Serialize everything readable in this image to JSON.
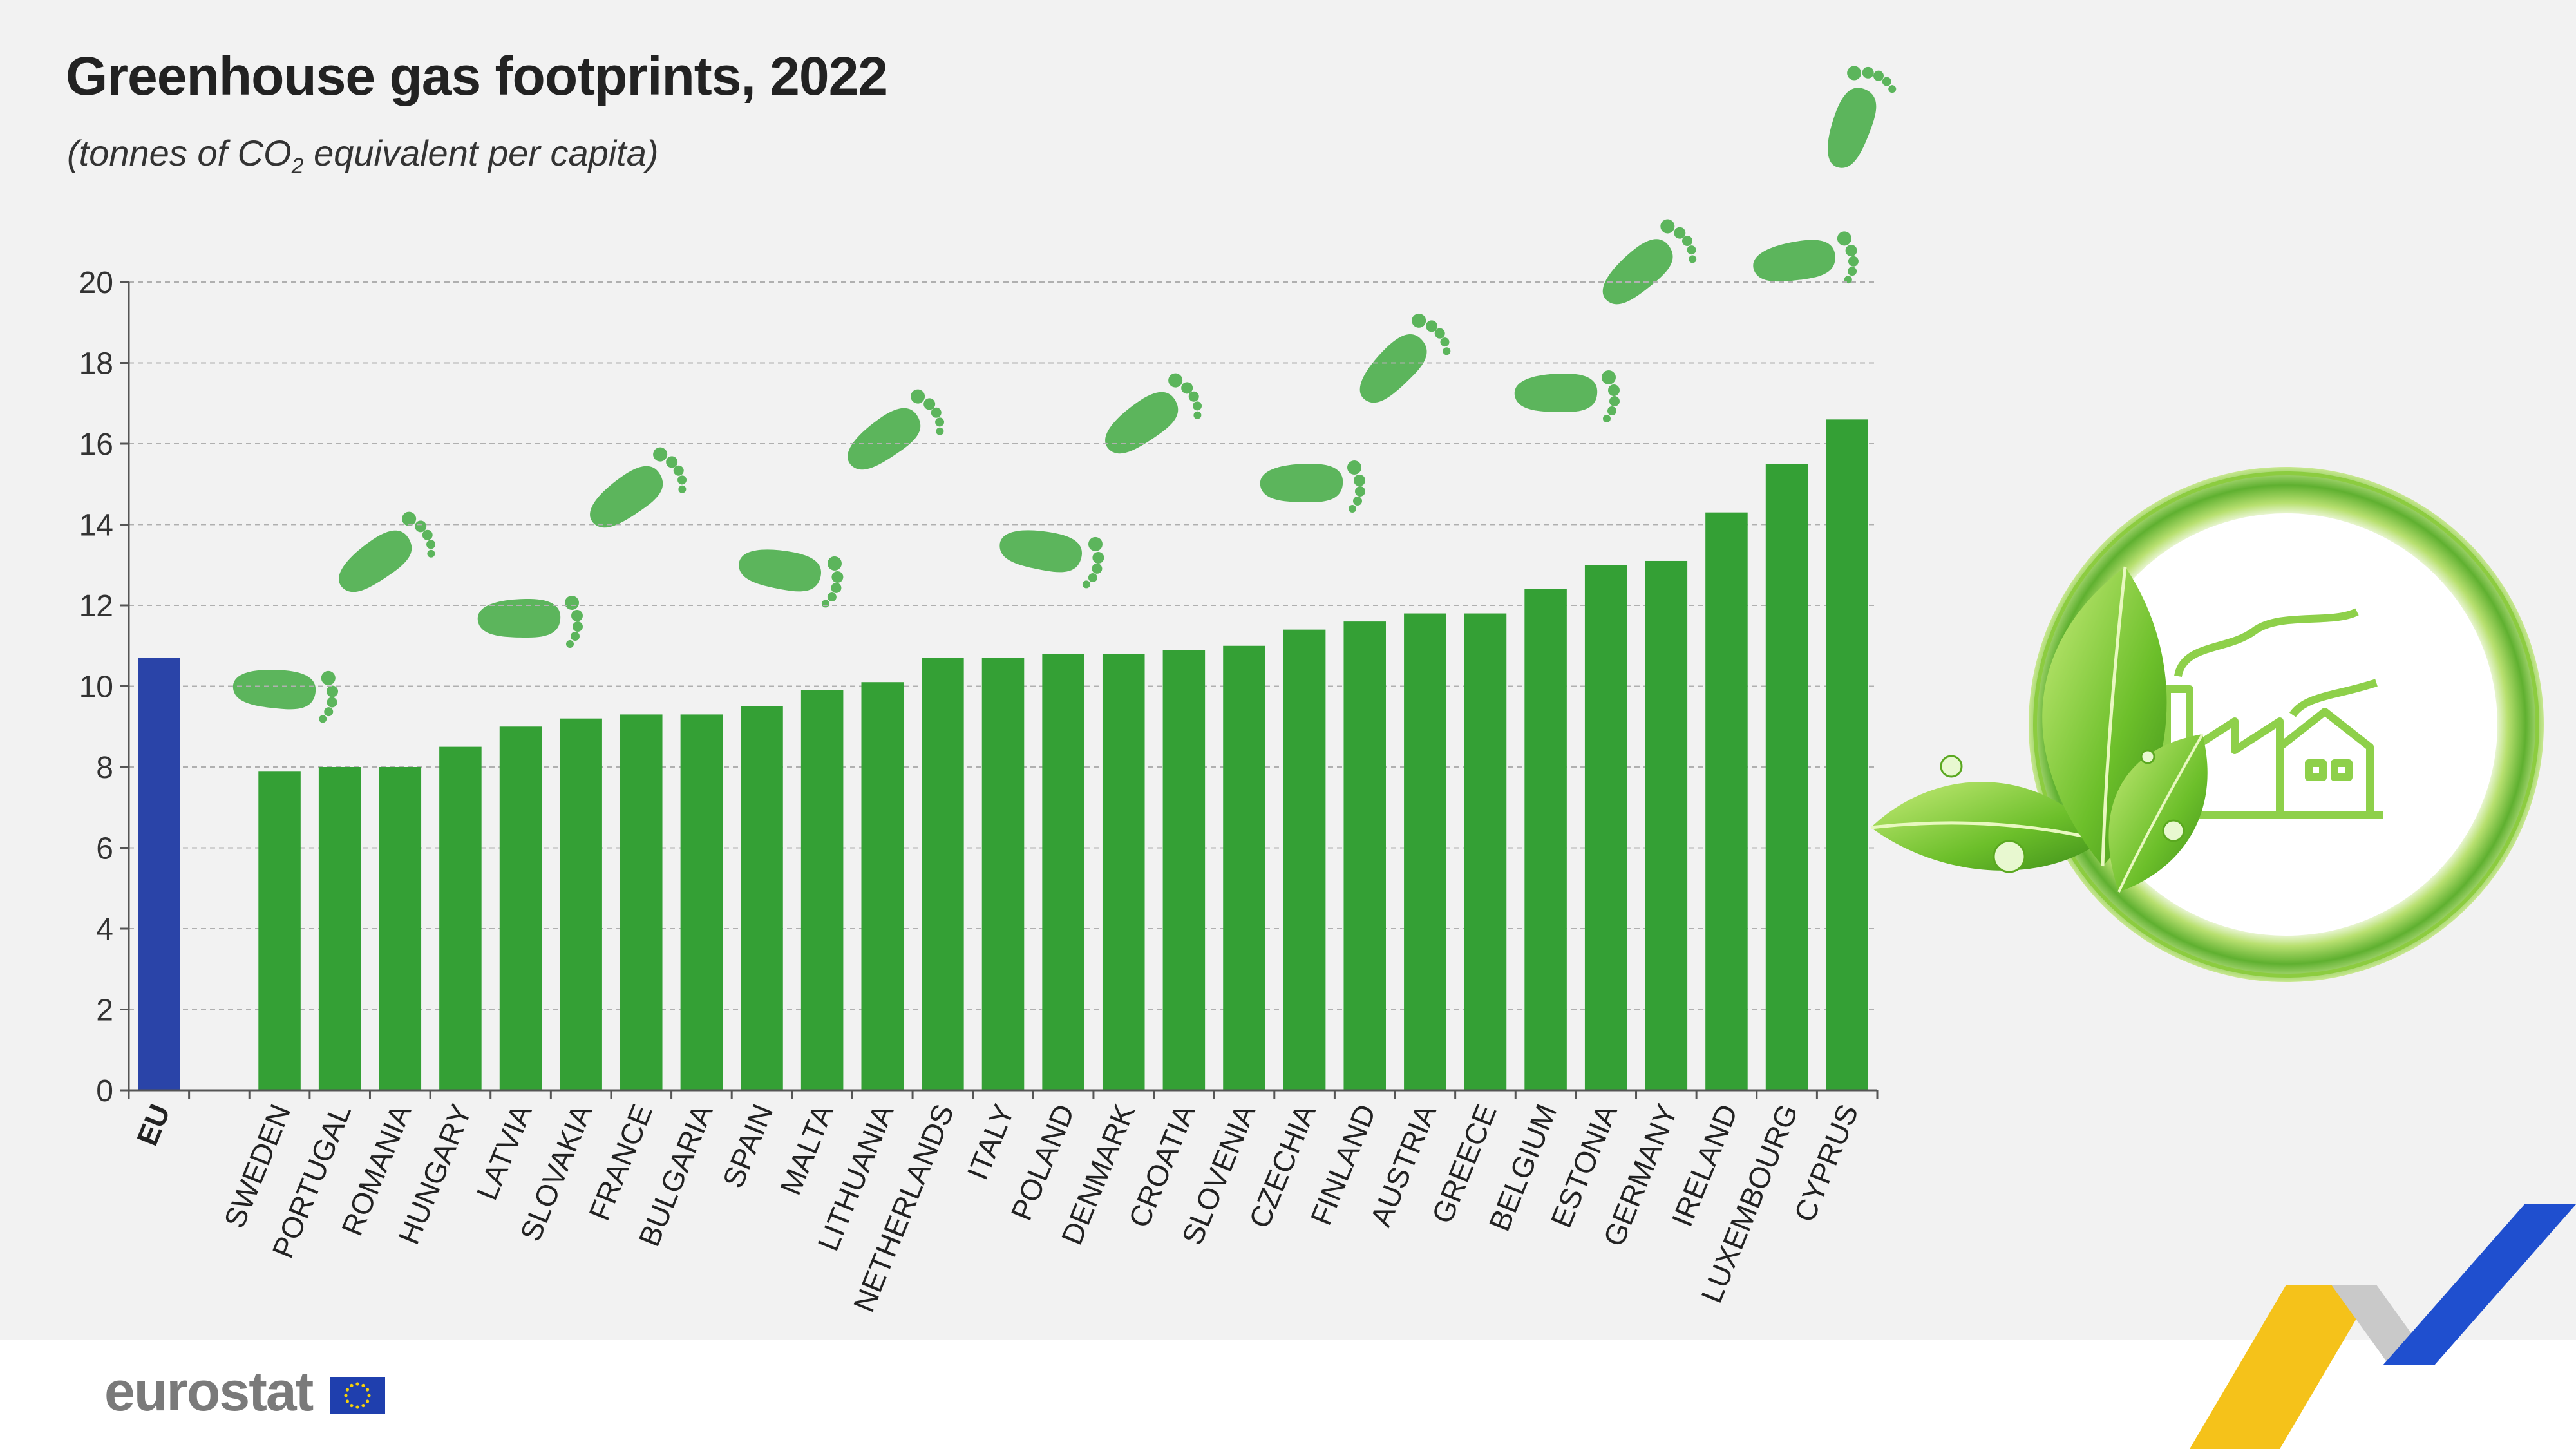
{
  "title": "Greenhouse gas footprints, 2022",
  "subtitle": {
    "before": "(tonnes of CO",
    "sub": "2",
    "after": " equivalent per capita)"
  },
  "colors": {
    "eu_bar": "#2a44a8",
    "country_bar": "#34a035",
    "footprint": "#5cb55c",
    "grid": "#b0b0b0"
  },
  "chart_data": {
    "type": "bar",
    "categories": [
      "EU",
      "SWEDEN",
      "PORTUGAL",
      "ROMANIA",
      "HUNGARY",
      "LATVIA",
      "SLOVAKIA",
      "FRANCE",
      "BULGARIA",
      "SPAIN",
      "MALTA",
      "LITHUANIA",
      "NETHERLANDS",
      "ITALY",
      "POLAND",
      "DENMARK",
      "CROATIA",
      "SLOVENIA",
      "CZECHIA",
      "FINLAND",
      "AUSTRIA",
      "GREECE",
      "BELGIUM",
      "ESTONIA",
      "GERMANY",
      "IRELAND",
      "LUXEMBOURG",
      "CYPRUS"
    ],
    "values": [
      10.7,
      7.9,
      8.0,
      8.0,
      8.5,
      9.0,
      9.2,
      9.3,
      9.3,
      9.5,
      9.9,
      10.1,
      10.7,
      10.7,
      10.8,
      10.8,
      10.9,
      11.0,
      11.4,
      11.6,
      11.8,
      11.8,
      12.4,
      13.0,
      13.1,
      14.3,
      15.5,
      16.6
    ],
    "highlight": "EU",
    "yticks": [
      0,
      2,
      4,
      6,
      8,
      10,
      12,
      14,
      16,
      18,
      20
    ],
    "ylim": [
      0,
      20
    ],
    "grid": true,
    "title": "Greenhouse gas footprints, 2022",
    "xlabel": "",
    "ylabel": ""
  },
  "logo": {
    "text": "eurostat"
  },
  "icons": [
    "footprint-icon",
    "leaf-eco-factory-icon",
    "eu-flag-icon",
    "ribbon-decoration-icon"
  ]
}
